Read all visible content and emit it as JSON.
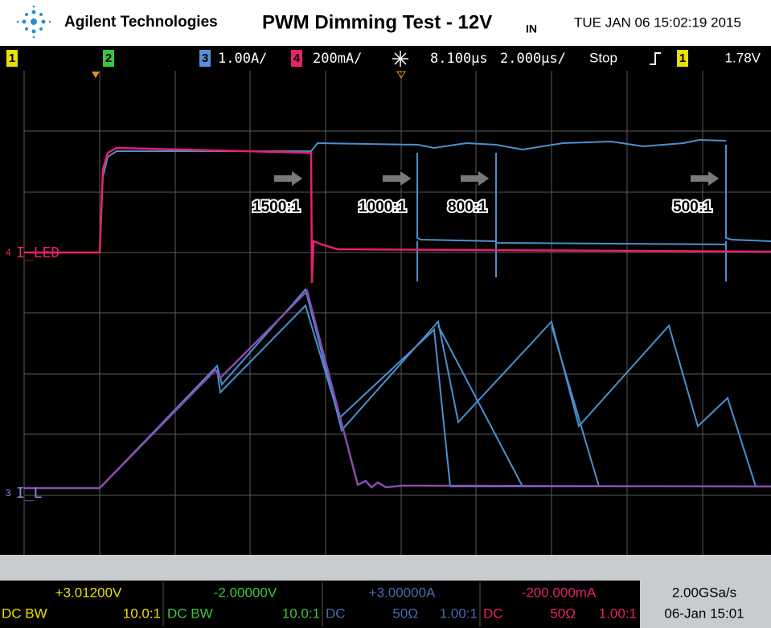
{
  "header": {
    "brand": "Agilent Technologies",
    "title": "PWM Dimming Test - 12V",
    "title_subscript": "IN",
    "timestamp": "TUE JAN 06 15:02:19 2015"
  },
  "status_bar": {
    "ch1": "1",
    "ch2": "2",
    "ch3": "3",
    "ch3_scale": "1.00A/",
    "ch4": "4",
    "ch4_scale": "200mA/",
    "time_delay": "8.100µs",
    "time_scale": "2.000µs/",
    "run_state": "Stop",
    "trigger_source": "1",
    "trigger_level": "1.78V"
  },
  "annotations": [
    "1500:1",
    "1000:1",
    "800:1",
    "500:1"
  ],
  "traces": {
    "led_marker": "4",
    "led_label": "I_LED",
    "il_marker": "3",
    "il_label": "I_L"
  },
  "footer": {
    "channels": [
      {
        "offset": "+3.01200V",
        "coupling": "DC BW",
        "probe": "10.0:1"
      },
      {
        "offset": "-2.00000V",
        "coupling": "DC BW",
        "probe": "10.0:1"
      },
      {
        "offset": "+3.00000A",
        "coupling": "DC",
        "impedance": "50Ω",
        "probe": "1.00:1"
      },
      {
        "offset": "-200.000mA",
        "coupling": "DC",
        "impedance": "50Ω",
        "probe": "1.00:1"
      }
    ],
    "sample_rate": "2.00GSa/s",
    "date": "06-Jan 15:01"
  }
}
